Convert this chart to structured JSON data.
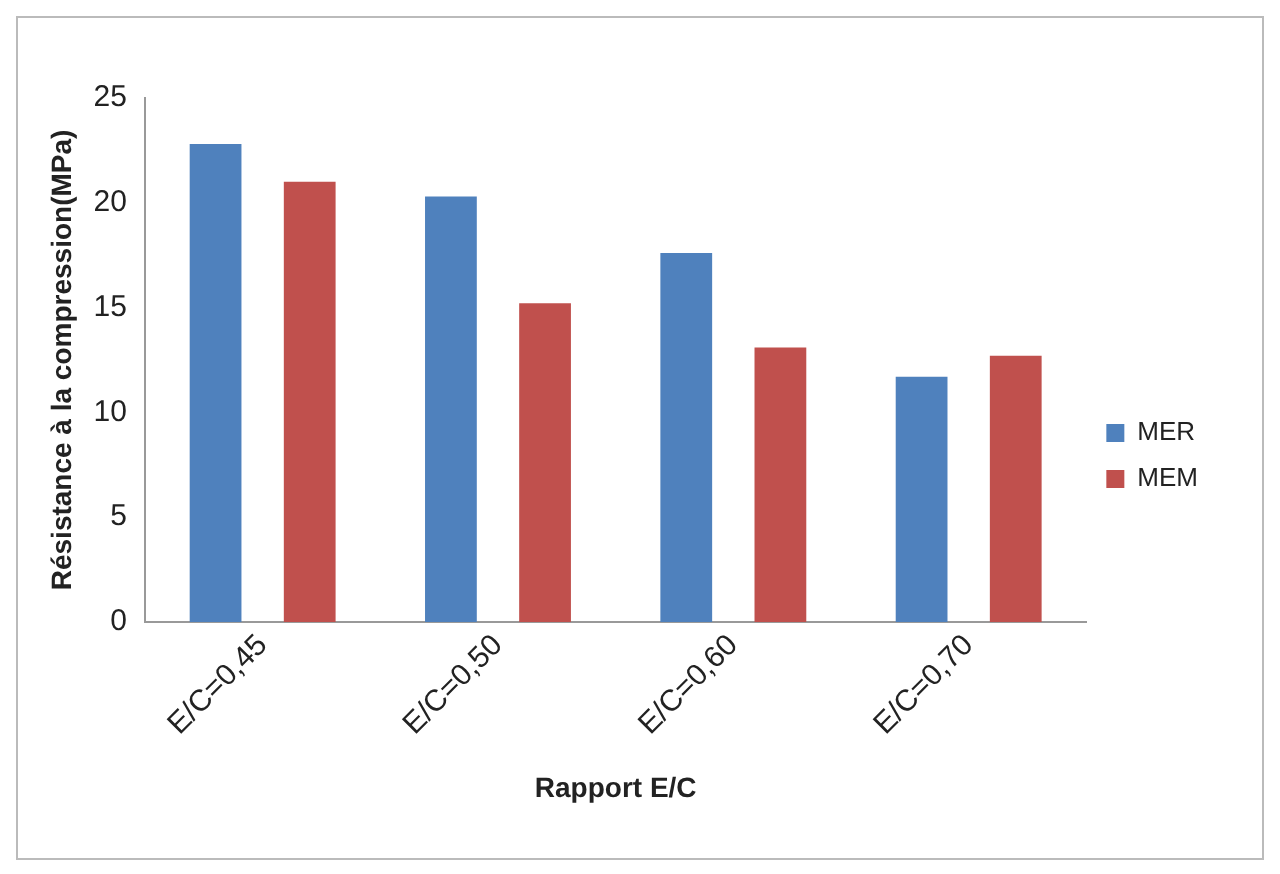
{
  "chart_data": {
    "type": "bar",
    "xlabel": "Rapport E/C",
    "ylabel": "Résistance à la compression(MPa)",
    "categories": [
      "E/C=0,45",
      "E/C=0,50",
      "E/C=0,60",
      "E/C=0,70"
    ],
    "series": [
      {
        "name": "MER",
        "color": "#4f81bd",
        "values": [
          22.8,
          20.3,
          17.6,
          11.7
        ]
      },
      {
        "name": "MEM",
        "color": "#c0504d",
        "values": [
          21.0,
          15.2,
          13.1,
          12.7
        ]
      }
    ],
    "ylim": [
      0,
      25
    ],
    "yticks": [
      0,
      5,
      10,
      15,
      20,
      25
    ],
    "grid": false,
    "legend": "right"
  }
}
